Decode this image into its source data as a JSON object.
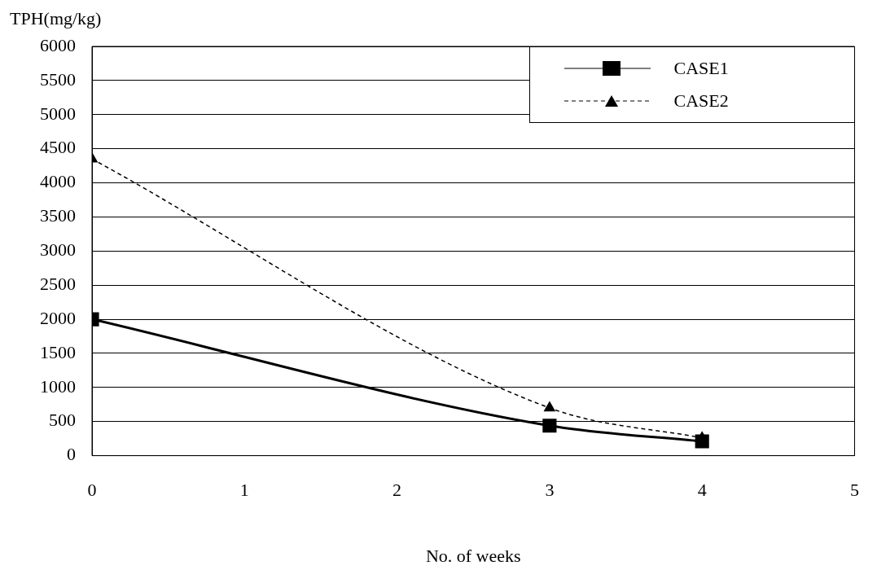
{
  "chart_data": {
    "type": "line",
    "ylabel": "TPH(mg/kg)",
    "xlabel": "No. of weeks",
    "xlim": [
      0,
      5
    ],
    "xticks": [
      0,
      1,
      2,
      3,
      4,
      5
    ],
    "ylim": [
      0,
      6000
    ],
    "yticks": [
      0,
      500,
      1000,
      1500,
      2000,
      2500,
      3000,
      3500,
      4000,
      4500,
      5000,
      5500,
      6000
    ],
    "grid": "y",
    "legend": "top right",
    "series": [
      {
        "name": "CASE1",
        "color": "#000000",
        "x": [
          0,
          3,
          4
        ],
        "values": [
          2000,
          440,
          210
        ],
        "marker": "square",
        "line_style": "solid"
      },
      {
        "name": "CASE2",
        "color": "#000000",
        "x": [
          0,
          3,
          4
        ],
        "values": [
          4350,
          700,
          260
        ],
        "marker": "triangle",
        "line_style": "dashed"
      }
    ]
  }
}
